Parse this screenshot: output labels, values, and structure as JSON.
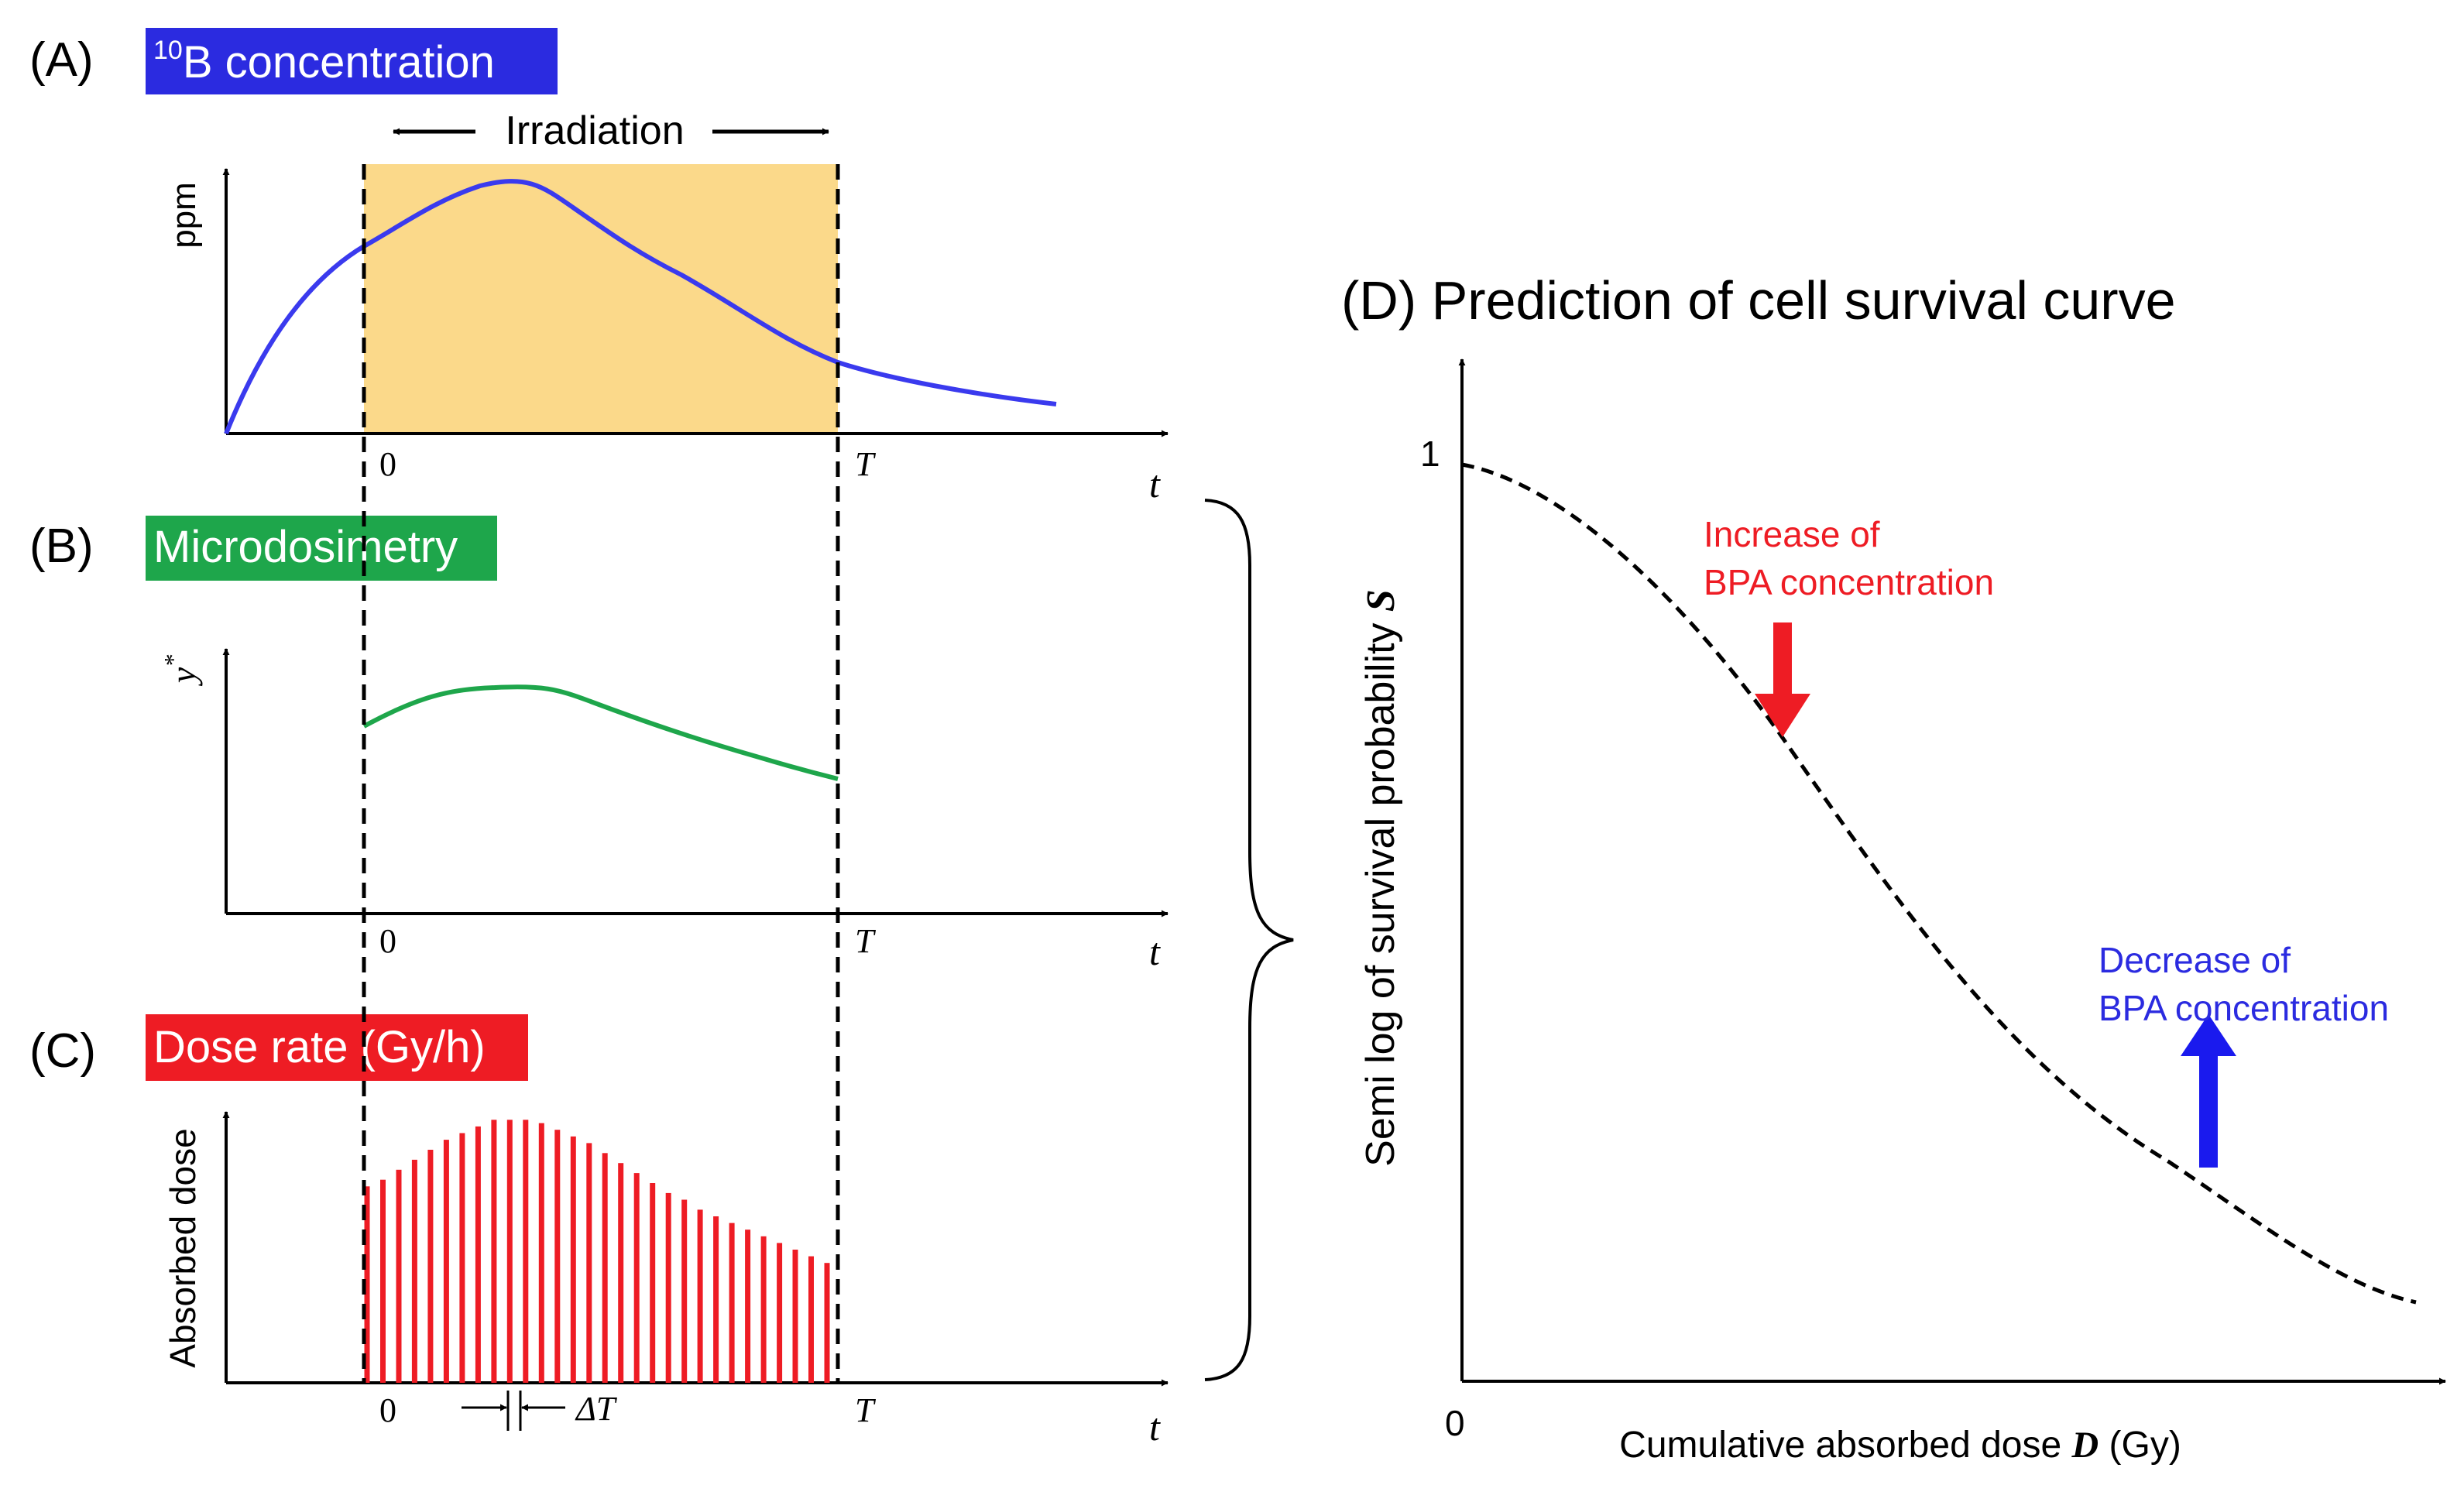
{
  "panels": {
    "a": {
      "letter": "(A)",
      "title_sup": "10",
      "title_main": "B concentration",
      "ylabel": "ppm",
      "irradiation": "Irradiation",
      "zero": "0",
      "T": "T",
      "t": "t"
    },
    "b": {
      "letter": "(B)",
      "title": "Microdosimetry",
      "ylabel_main": "y",
      "ylabel_sup": "*",
      "zero": "0",
      "T": "T",
      "t": "t"
    },
    "c": {
      "letter": "(C)",
      "title": "Dose rate (Gy/h)",
      "ylabel": "Absorbed dose",
      "zero": "0",
      "T": "T",
      "t": "t",
      "delta": "ΔT"
    },
    "d": {
      "title": "(D) Prediction of cell survival curve",
      "ylabel_main": "Semi log of survival probability ",
      "ylabel_var": "S",
      "xlabel_main": "Cumulative absorbed dose ",
      "xlabel_var": "D",
      "xlabel_unit": " (Gy)",
      "tick_one": "1",
      "tick_zero": "0",
      "increase_line1": "Increase of",
      "increase_line2": "BPA concentration",
      "decrease_line1": "Decrease of",
      "decrease_line2": "BPA concentration"
    }
  },
  "colors": {
    "blue_box": "#2b2be0",
    "green_box": "#1ea64b",
    "red_box": "#ee1c24",
    "irradiation_fill": "#fbd98a",
    "curve_blue": "#3a3aee",
    "curve_green": "#1ea64b",
    "bar_red": "#ee1c24",
    "arrow_red": "#ee1c24",
    "arrow_blue": "#1a1aee",
    "text_red": "#ee1c24",
    "text_blue": "#2b2be0"
  },
  "chart_data": [
    {
      "type": "bar",
      "title": "Dose rate (Gy/h)",
      "ylabel": "Absorbed dose",
      "xlabel": "t",
      "series": [
        {
          "values": [
            0.59,
            0.61,
            0.64,
            0.67,
            0.7,
            0.73,
            0.75,
            0.77,
            0.79,
            0.79,
            0.79,
            0.78,
            0.76,
            0.74,
            0.72,
            0.69,
            0.66,
            0.63,
            0.6,
            0.57,
            0.55,
            0.52,
            0.5,
            0.48,
            0.46,
            0.44,
            0.42,
            0.4,
            0.38,
            0.36
          ]
        }
      ]
    }
  ]
}
